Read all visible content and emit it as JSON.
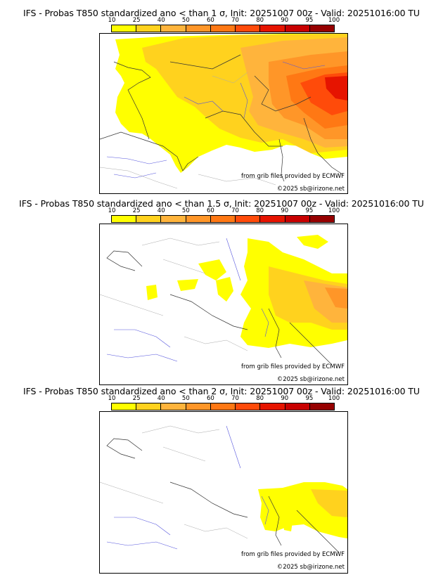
{
  "panels": [
    {
      "title": "IFS - Probas T850  standardized ano < than 1 σ, Init: 20251007 00z - Valid: 20251016:00 TU"
    },
    {
      "title": "IFS - Probas T850  standardized ano < than 1.5 σ, Init: 20251007 00z - Valid: 20251016:00 TU"
    },
    {
      "title": "IFS - Probas T850  standardized ano < than 2 σ, Init: 20251007 00z - Valid: 20251016:00 TU"
    }
  ],
  "scale": {
    "ticks": [
      "10",
      "25",
      "40",
      "50",
      "60",
      "70",
      "80",
      "90",
      "95",
      "100"
    ],
    "colors": [
      "#ffff00",
      "#ffd21e",
      "#ffb43c",
      "#ff9628",
      "#ff7814",
      "#ff4b0a",
      "#e61400",
      "#c80000",
      "#960000"
    ]
  },
  "credits": {
    "source": "from grib files provided by ECMWF",
    "copyright": "©2025 sb@irizone.net"
  }
}
